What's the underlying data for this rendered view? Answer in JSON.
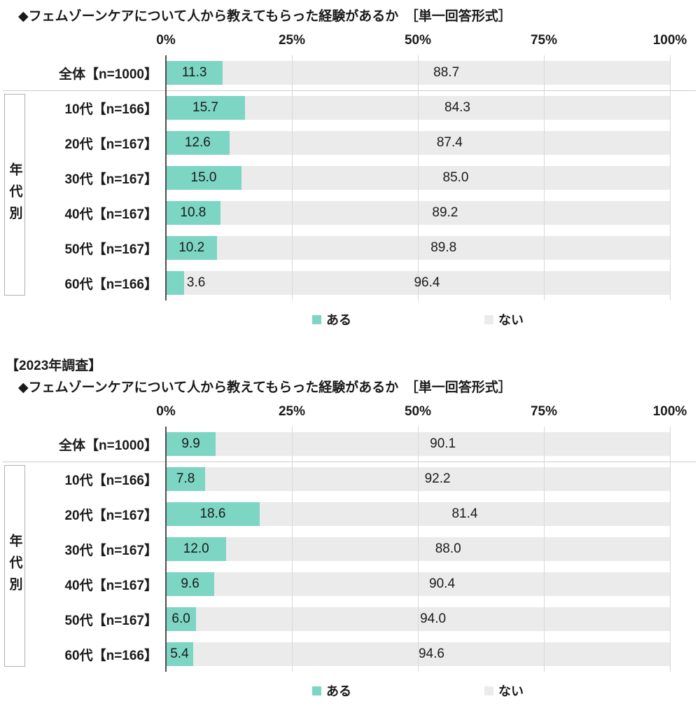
{
  "chart_data": [
    {
      "type": "bar",
      "stacked": true,
      "orientation": "horizontal",
      "title": "◆フェムゾーンケアについて人から教えてもらった経験があるか　［単一回答形式］",
      "header": null,
      "group_label": "年代別",
      "categories": [
        "全体【n=1000】",
        "10代【n=166】",
        "20代【n=167】",
        "30代【n=167】",
        "40代【n=167】",
        "50代【n=167】",
        "60代【n=166】"
      ],
      "series": [
        {
          "name": "ある",
          "color": "#7DD5C4",
          "values": [
            11.3,
            15.7,
            12.6,
            15.0,
            10.8,
            10.2,
            3.6
          ]
        },
        {
          "name": "ない",
          "color": "#EBEBEB",
          "values": [
            88.7,
            84.3,
            87.4,
            85.0,
            89.2,
            89.8,
            96.4
          ]
        }
      ],
      "x_ticks": [
        "0%",
        "25%",
        "50%",
        "75%",
        "100%"
      ],
      "xlim": [
        0,
        100
      ],
      "xlabel": "",
      "ylabel": "",
      "grid": true,
      "legend": [
        "ある",
        "ない"
      ],
      "legend_position": "bottom"
    },
    {
      "type": "bar",
      "stacked": true,
      "orientation": "horizontal",
      "title": "◆フェムゾーンケアについて人から教えてもらった経験があるか　［単一回答形式］",
      "header": "【2023年調査】",
      "group_label": "年代別",
      "categories": [
        "全体【n=1000】",
        "10代【n=166】",
        "20代【n=167】",
        "30代【n=167】",
        "40代【n=167】",
        "50代【n=167】",
        "60代【n=166】"
      ],
      "series": [
        {
          "name": "ある",
          "color": "#7DD5C4",
          "values": [
            9.9,
            7.8,
            18.6,
            12.0,
            9.6,
            6.0,
            5.4
          ]
        },
        {
          "name": "ない",
          "color": "#EBEBEB",
          "values": [
            90.1,
            92.2,
            81.4,
            88.0,
            90.4,
            94.0,
            94.6
          ]
        }
      ],
      "x_ticks": [
        "0%",
        "25%",
        "50%",
        "75%",
        "100%"
      ],
      "xlim": [
        0,
        100
      ],
      "xlabel": "",
      "ylabel": "",
      "grid": true,
      "legend": [
        "ある",
        "ない"
      ],
      "legend_position": "bottom"
    }
  ]
}
